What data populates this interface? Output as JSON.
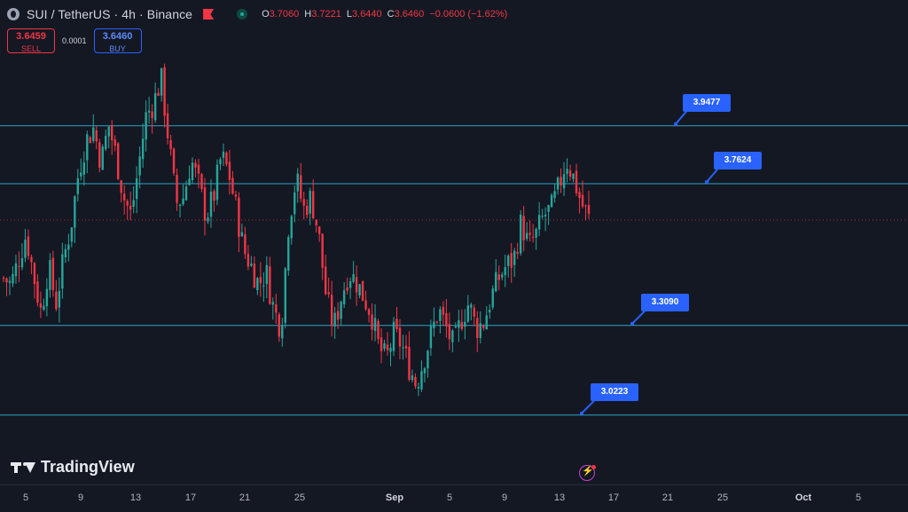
{
  "header": {
    "symbol_title": "SUI / TetherUS · 4h · Binance",
    "ohlc": [
      {
        "label": "O",
        "value": "3.7060"
      },
      {
        "label": "H",
        "value": "3.7221"
      },
      {
        "label": "L",
        "value": "3.6440"
      },
      {
        "label": "C",
        "value": "3.6460"
      }
    ],
    "change": "−0.0600 (−1.62%)"
  },
  "trade": {
    "sell_price": "3.6459",
    "sell_label": "SELL",
    "spread": "0.0001",
    "buy_price": "3.6460",
    "buy_label": "BUY"
  },
  "logo": {
    "text": "TradingView"
  },
  "x_axis": {
    "ticks": [
      {
        "label": "5",
        "bold": false
      },
      {
        "label": "9",
        "bold": false
      },
      {
        "label": "13",
        "bold": false
      },
      {
        "label": "17",
        "bold": false
      },
      {
        "label": "21",
        "bold": false
      },
      {
        "label": "25",
        "bold": false
      },
      {
        "label": "Sep",
        "bold": true
      },
      {
        "label": "5",
        "bold": false
      },
      {
        "label": "9",
        "bold": false
      },
      {
        "label": "13",
        "bold": false
      },
      {
        "label": "17",
        "bold": false
      },
      {
        "label": "21",
        "bold": false
      },
      {
        "label": "25",
        "bold": false
      },
      {
        "label": "Oct",
        "bold": true
      },
      {
        "label": "5",
        "bold": false
      }
    ]
  },
  "colors": {
    "background": "#141823",
    "up": "#26a69a",
    "down": "#f23645",
    "level_line": "#2aa4c4",
    "label_bg": "#2962ff",
    "last_price_line": "#f23645"
  },
  "chart_data": {
    "type": "candlestick",
    "y_range": [
      2.8,
      4.35
    ],
    "current_price": 3.646,
    "levels": [
      {
        "price": 3.9477,
        "label": "3.9477"
      },
      {
        "price": 3.7624,
        "label": "3.7624"
      },
      {
        "price": 3.309,
        "label": "3.3090"
      },
      {
        "price": 3.0223,
        "label": "3.0223"
      }
    ],
    "path": [
      3.46,
      3.44,
      3.52,
      3.6,
      3.47,
      3.35,
      3.5,
      3.38,
      3.52,
      3.63,
      3.8,
      3.9,
      3.94,
      3.83,
      3.95,
      3.85,
      3.72,
      3.66,
      3.82,
      3.98,
      4.02,
      4.1,
      3.9,
      3.7,
      3.72,
      3.84,
      3.76,
      3.66,
      3.72,
      3.85,
      3.8,
      3.68,
      3.55,
      3.5,
      3.44,
      3.48,
      3.36,
      3.3,
      3.64,
      3.78,
      3.68,
      3.72,
      3.6,
      3.4,
      3.3,
      3.4,
      3.48,
      3.45,
      3.4,
      3.35,
      3.24,
      3.2,
      3.28,
      3.25,
      3.18,
      3.12,
      3.2,
      3.28,
      3.36,
      3.3,
      3.24,
      3.33,
      3.38,
      3.3,
      3.32,
      3.4,
      3.46,
      3.5,
      3.52,
      3.64,
      3.56,
      3.6,
      3.66,
      3.68,
      3.75,
      3.84,
      3.78,
      3.7,
      3.65
    ],
    "seed": 7
  }
}
